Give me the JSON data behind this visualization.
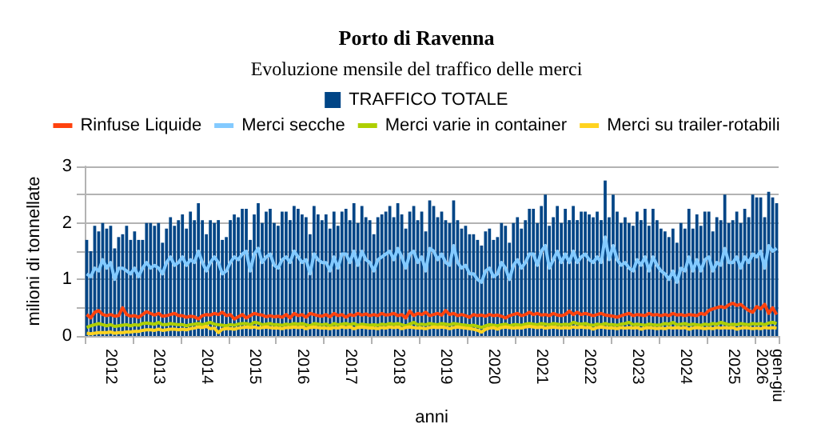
{
  "chart_data": {
    "type": "bar",
    "title": "Porto di Ravenna",
    "subtitle": "Evoluzione mensile del traffico delle merci",
    "xlabel": "anni",
    "ylabel": "milioni di tonnellate",
    "categories": [
      null,
      null,
      null,
      null,
      null,
      null,
      "2012",
      null,
      null,
      null,
      null,
      null,
      null,
      null,
      null,
      null,
      null,
      null,
      "2013",
      null,
      null,
      null,
      null,
      null,
      null,
      null,
      null,
      null,
      null,
      null,
      "2014",
      null,
      null,
      null,
      null,
      null,
      null,
      null,
      null,
      null,
      null,
      null,
      "2015",
      null,
      null,
      null,
      null,
      null,
      null,
      null,
      null,
      null,
      null,
      null,
      "2016",
      null,
      null,
      null,
      null,
      null,
      null,
      null,
      null,
      null,
      null,
      null,
      "2017",
      null,
      null,
      null,
      null,
      null,
      null,
      null,
      null,
      null,
      null,
      null,
      "2018",
      null,
      null,
      null,
      null,
      null,
      null,
      null,
      null,
      null,
      null,
      null,
      "2019",
      null,
      null,
      null,
      null,
      null,
      null,
      null,
      null,
      null,
      null,
      null,
      "2020",
      null,
      null,
      null,
      null,
      null,
      null,
      null,
      null,
      null,
      null,
      null,
      "2021",
      null,
      null,
      null,
      null,
      null,
      null,
      null,
      null,
      null,
      null,
      null,
      "2022",
      null,
      null,
      null,
      null,
      null,
      null,
      null,
      null,
      null,
      null,
      null,
      "2023",
      null,
      null,
      null,
      null,
      null,
      null,
      null,
      null,
      null,
      null,
      null,
      "2024",
      null,
      null,
      null,
      null,
      null,
      null,
      null,
      null,
      null,
      null,
      null,
      "2025",
      null,
      null,
      null,
      null,
      null,
      null,
      null,
      null,
      "gen-giu 2026",
      null,
      null
    ],
    "series": [
      {
        "name": "TRAFFICO TOTALE",
        "color": "#004586",
        "values": [
          1.7,
          1.5,
          1.95,
          1.85,
          2.0,
          1.9,
          1.95,
          1.55,
          1.75,
          1.8,
          1.95,
          1.7,
          1.85,
          1.7,
          1.7,
          2.0,
          2.0,
          1.95,
          2.0,
          1.65,
          1.9,
          2.1,
          1.95,
          2.05,
          2.15,
          1.9,
          2.2,
          2.05,
          2.35,
          2.05,
          1.8,
          2.05,
          2.0,
          2.05,
          1.7,
          1.75,
          2.05,
          2.15,
          2.1,
          2.25,
          2.25,
          1.7,
          2.15,
          2.35,
          2.0,
          2.2,
          2.25,
          2.0,
          1.95,
          2.2,
          2.2,
          2.05,
          2.3,
          2.25,
          2.15,
          2.1,
          1.8,
          2.3,
          2.15,
          2.05,
          2.15,
          1.9,
          2.2,
          1.95,
          2.2,
          2.25,
          2.05,
          2.35,
          2.0,
          2.3,
          2.1,
          2.05,
          1.8,
          2.1,
          2.15,
          2.2,
          2.3,
          2.1,
          2.35,
          2.15,
          1.9,
          2.2,
          2.3,
          2.05,
          2.2,
          1.85,
          2.4,
          2.3,
          2.1,
          2.2,
          2.05,
          2.0,
          2.4,
          2.05,
          1.9,
          1.95,
          1.8,
          1.8,
          1.7,
          1.6,
          1.85,
          1.9,
          1.7,
          1.75,
          2.0,
          1.95,
          1.65,
          2.0,
          2.1,
          1.9,
          2.05,
          2.25,
          2.25,
          2.0,
          2.3,
          2.5,
          1.95,
          2.1,
          2.3,
          2.0,
          2.25,
          2.05,
          2.3,
          2.05,
          2.2,
          2.2,
          2.15,
          2.1,
          2.2,
          2.05,
          2.75,
          2.1,
          2.5,
          2.2,
          2.0,
          2.1,
          2.0,
          1.95,
          2.2,
          2.05,
          2.25,
          1.95,
          2.25,
          2.05,
          1.9,
          1.85,
          1.75,
          1.9,
          1.65,
          2.0,
          1.9,
          2.25,
          1.9,
          2.15,
          1.95,
          2.2,
          2.2,
          1.85,
          2.1,
          2.05,
          2.5,
          2.0,
          2.05,
          2.2,
          2.0,
          2.25,
          2.1,
          2.5,
          2.45,
          2.45,
          2.1,
          2.55,
          2.45,
          2.35
        ]
      },
      {
        "name": "Rinfuse Liquide",
        "type": "line",
        "color": "#ff420e",
        "values": [
          0.38,
          0.32,
          0.42,
          0.45,
          0.38,
          0.36,
          0.38,
          0.35,
          0.36,
          0.5,
          0.38,
          0.35,
          0.36,
          0.33,
          0.38,
          0.43,
          0.4,
          0.37,
          0.4,
          0.35,
          0.36,
          0.38,
          0.4,
          0.36,
          0.36,
          0.33,
          0.35,
          0.34,
          0.3,
          0.36,
          0.38,
          0.37,
          0.4,
          0.38,
          0.42,
          0.36,
          0.38,
          0.3,
          0.34,
          0.38,
          0.32,
          0.36,
          0.4,
          0.38,
          0.37,
          0.34,
          0.36,
          0.34,
          0.35,
          0.33,
          0.38,
          0.32,
          0.4,
          0.36,
          0.38,
          0.33,
          0.4,
          0.38,
          0.36,
          0.35,
          0.38,
          0.34,
          0.4,
          0.36,
          0.38,
          0.33,
          0.38,
          0.36,
          0.4,
          0.37,
          0.39,
          0.36,
          0.38,
          0.36,
          0.4,
          0.37,
          0.38,
          0.4,
          0.36,
          0.38,
          0.32,
          0.44,
          0.36,
          0.4,
          0.38,
          0.42,
          0.36,
          0.38,
          0.4,
          0.37,
          0.45,
          0.38,
          0.4,
          0.36,
          0.38,
          0.36,
          0.33,
          0.38,
          0.36,
          0.37,
          0.35,
          0.38,
          0.36,
          0.37,
          0.35,
          0.32,
          0.36,
          0.38,
          0.4,
          0.36,
          0.38,
          0.42,
          0.38,
          0.4,
          0.37,
          0.38,
          0.36,
          0.4,
          0.37,
          0.36,
          0.38,
          0.44,
          0.38,
          0.42,
          0.38,
          0.4,
          0.38,
          0.36,
          0.38,
          0.4,
          0.37,
          0.36,
          0.35,
          0.33,
          0.36,
          0.38,
          0.4,
          0.36,
          0.38,
          0.37,
          0.36,
          0.4,
          0.37,
          0.38,
          0.36,
          0.38,
          0.36,
          0.4,
          0.37,
          0.38,
          0.36,
          0.38,
          0.37,
          0.36,
          0.4,
          0.38,
          0.45,
          0.48,
          0.5,
          0.52,
          0.5,
          0.55,
          0.58,
          0.54,
          0.56,
          0.5,
          0.45,
          0.42,
          0.52,
          0.48,
          0.56,
          0.4,
          0.5,
          0.38
        ]
      },
      {
        "name": "Merci secche",
        "type": "line",
        "color": "#83caff",
        "values": [
          1.1,
          1.05,
          1.2,
          1.15,
          1.35,
          1.2,
          1.3,
          1.0,
          1.2,
          1.2,
          1.15,
          1.1,
          1.2,
          1.05,
          1.2,
          1.3,
          1.2,
          1.25,
          1.2,
          1.1,
          1.3,
          1.4,
          1.25,
          1.3,
          1.4,
          1.25,
          1.35,
          1.3,
          1.5,
          1.3,
          1.15,
          1.3,
          1.4,
          1.3,
          1.1,
          1.15,
          1.3,
          1.4,
          1.35,
          1.45,
          1.5,
          1.15,
          1.45,
          1.55,
          1.3,
          1.4,
          1.45,
          1.25,
          1.2,
          1.35,
          1.4,
          1.3,
          1.5,
          1.4,
          1.3,
          1.35,
          1.1,
          1.45,
          1.35,
          1.3,
          1.3,
          1.15,
          1.4,
          1.2,
          1.45,
          1.45,
          1.3,
          1.5,
          1.25,
          1.5,
          1.35,
          1.3,
          1.15,
          1.35,
          1.4,
          1.45,
          1.5,
          1.35,
          1.55,
          1.4,
          1.2,
          1.45,
          1.5,
          1.3,
          1.4,
          1.15,
          1.55,
          1.5,
          1.35,
          1.45,
          1.3,
          1.25,
          1.6,
          1.3,
          1.2,
          1.25,
          1.1,
          1.1,
          1.0,
          0.95,
          1.15,
          1.2,
          1.05,
          1.1,
          1.3,
          1.2,
          1.0,
          1.25,
          1.35,
          1.2,
          1.3,
          1.45,
          1.45,
          1.25,
          1.5,
          1.6,
          1.2,
          1.35,
          1.5,
          1.3,
          1.45,
          1.3,
          1.5,
          1.3,
          1.4,
          1.45,
          1.35,
          1.3,
          1.4,
          1.3,
          1.75,
          1.35,
          1.6,
          1.35,
          1.25,
          1.3,
          1.2,
          1.15,
          1.35,
          1.25,
          1.4,
          1.15,
          1.4,
          1.25,
          1.15,
          1.1,
          1.0,
          1.15,
          0.95,
          1.2,
          1.15,
          1.4,
          1.15,
          1.35,
          1.15,
          1.35,
          1.4,
          1.15,
          1.3,
          1.25,
          1.55,
          1.3,
          1.3,
          1.4,
          1.2,
          1.4,
          1.3,
          1.45,
          1.4,
          1.5,
          1.2,
          1.6,
          1.5,
          1.55
        ]
      },
      {
        "name": "Merci varie in container",
        "type": "line",
        "color": "#aecf00",
        "values": [
          0.15,
          0.18,
          0.2,
          0.22,
          0.2,
          0.18,
          0.2,
          0.17,
          0.18,
          0.19,
          0.2,
          0.18,
          0.2,
          0.19,
          0.22,
          0.23,
          0.22,
          0.21,
          0.24,
          0.2,
          0.2,
          0.22,
          0.21,
          0.2,
          0.2,
          0.18,
          0.2,
          0.21,
          0.22,
          0.2,
          0.22,
          0.24,
          0.21,
          0.2,
          0.19,
          0.18,
          0.2,
          0.19,
          0.21,
          0.22,
          0.22,
          0.2,
          0.24,
          0.23,
          0.2,
          0.21,
          0.22,
          0.2,
          0.2,
          0.19,
          0.21,
          0.2,
          0.22,
          0.21,
          0.22,
          0.2,
          0.18,
          0.22,
          0.21,
          0.2,
          0.21,
          0.18,
          0.22,
          0.2,
          0.21,
          0.22,
          0.2,
          0.22,
          0.19,
          0.21,
          0.2,
          0.19,
          0.2,
          0.19,
          0.21,
          0.2,
          0.22,
          0.21,
          0.22,
          0.2,
          0.18,
          0.21,
          0.24,
          0.2,
          0.21,
          0.2,
          0.22,
          0.21,
          0.2,
          0.22,
          0.21,
          0.2,
          0.22,
          0.21,
          0.2,
          0.19,
          0.18,
          0.19,
          0.17,
          0.15,
          0.18,
          0.2,
          0.19,
          0.18,
          0.2,
          0.21,
          0.18,
          0.2,
          0.2,
          0.19,
          0.21,
          0.22,
          0.21,
          0.2,
          0.22,
          0.21,
          0.2,
          0.22,
          0.21,
          0.2,
          0.21,
          0.2,
          0.24,
          0.22,
          0.21,
          0.22,
          0.2,
          0.19,
          0.21,
          0.2,
          0.22,
          0.2,
          0.2,
          0.19,
          0.21,
          0.22,
          0.24,
          0.2,
          0.21,
          0.2,
          0.19,
          0.21,
          0.2,
          0.19,
          0.2,
          0.22,
          0.21,
          0.24,
          0.2,
          0.21,
          0.22,
          0.2,
          0.21,
          0.2,
          0.19,
          0.21,
          0.2,
          0.22,
          0.21,
          0.24,
          0.22,
          0.2,
          0.21,
          0.2,
          0.22,
          0.21,
          0.2,
          0.22,
          0.21,
          0.22,
          0.2,
          0.23,
          0.24,
          0.22
        ]
      },
      {
        "name": "Merci su trailer-rotabili",
        "type": "line",
        "color": "#ffd320",
        "values": [
          0.05,
          0.04,
          0.05,
          0.06,
          0.06,
          0.06,
          0.07,
          0.05,
          0.06,
          0.06,
          0.07,
          0.07,
          0.08,
          0.08,
          0.1,
          0.11,
          0.11,
          0.1,
          0.12,
          0.1,
          0.11,
          0.12,
          0.12,
          0.11,
          0.12,
          0.11,
          0.13,
          0.14,
          0.16,
          0.15,
          0.17,
          0.13,
          0.14,
          0.06,
          0.12,
          0.13,
          0.13,
          0.12,
          0.14,
          0.15,
          0.16,
          0.15,
          0.16,
          0.14,
          0.15,
          0.16,
          0.15,
          0.14,
          0.14,
          0.13,
          0.15,
          0.15,
          0.16,
          0.15,
          0.16,
          0.13,
          0.15,
          0.16,
          0.15,
          0.14,
          0.14,
          0.13,
          0.15,
          0.14,
          0.16,
          0.15,
          0.16,
          0.13,
          0.15,
          0.16,
          0.15,
          0.14,
          0.14,
          0.13,
          0.15,
          0.14,
          0.16,
          0.15,
          0.16,
          0.13,
          0.15,
          0.16,
          0.15,
          0.14,
          0.14,
          0.13,
          0.15,
          0.16,
          0.15,
          0.16,
          0.15,
          0.13,
          0.15,
          0.16,
          0.15,
          0.14,
          0.13,
          0.12,
          0.1,
          0.07,
          0.12,
          0.14,
          0.15,
          0.12,
          0.15,
          0.16,
          0.15,
          0.14,
          0.15,
          0.14,
          0.16,
          0.17,
          0.16,
          0.15,
          0.16,
          0.14,
          0.15,
          0.16,
          0.15,
          0.14,
          0.15,
          0.14,
          0.16,
          0.15,
          0.16,
          0.15,
          0.15,
          0.12,
          0.15,
          0.16,
          0.15,
          0.14,
          0.14,
          0.13,
          0.15,
          0.14,
          0.15,
          0.14,
          0.15,
          0.12,
          0.14,
          0.15,
          0.14,
          0.13,
          0.14,
          0.13,
          0.15,
          0.14,
          0.15,
          0.14,
          0.15,
          0.12,
          0.14,
          0.15,
          0.14,
          0.13,
          0.14,
          0.13,
          0.15,
          0.14,
          0.15,
          0.14,
          0.15,
          0.12,
          0.14,
          0.15,
          0.14,
          0.13,
          0.14,
          0.13,
          0.15,
          0.14,
          0.15,
          0.14
        ]
      }
    ],
    "ylim": [
      0,
      3
    ],
    "yticks": [
      0,
      {
        "value": 0.5,
        "label": null
      },
      1,
      {
        "value": 1.5,
        "label": null
      },
      2,
      {
        "value": 2.5,
        "label": null
      },
      3
    ],
    "grid": "y",
    "legend": "top",
    "marker": "none",
    "line_style": "solid"
  }
}
